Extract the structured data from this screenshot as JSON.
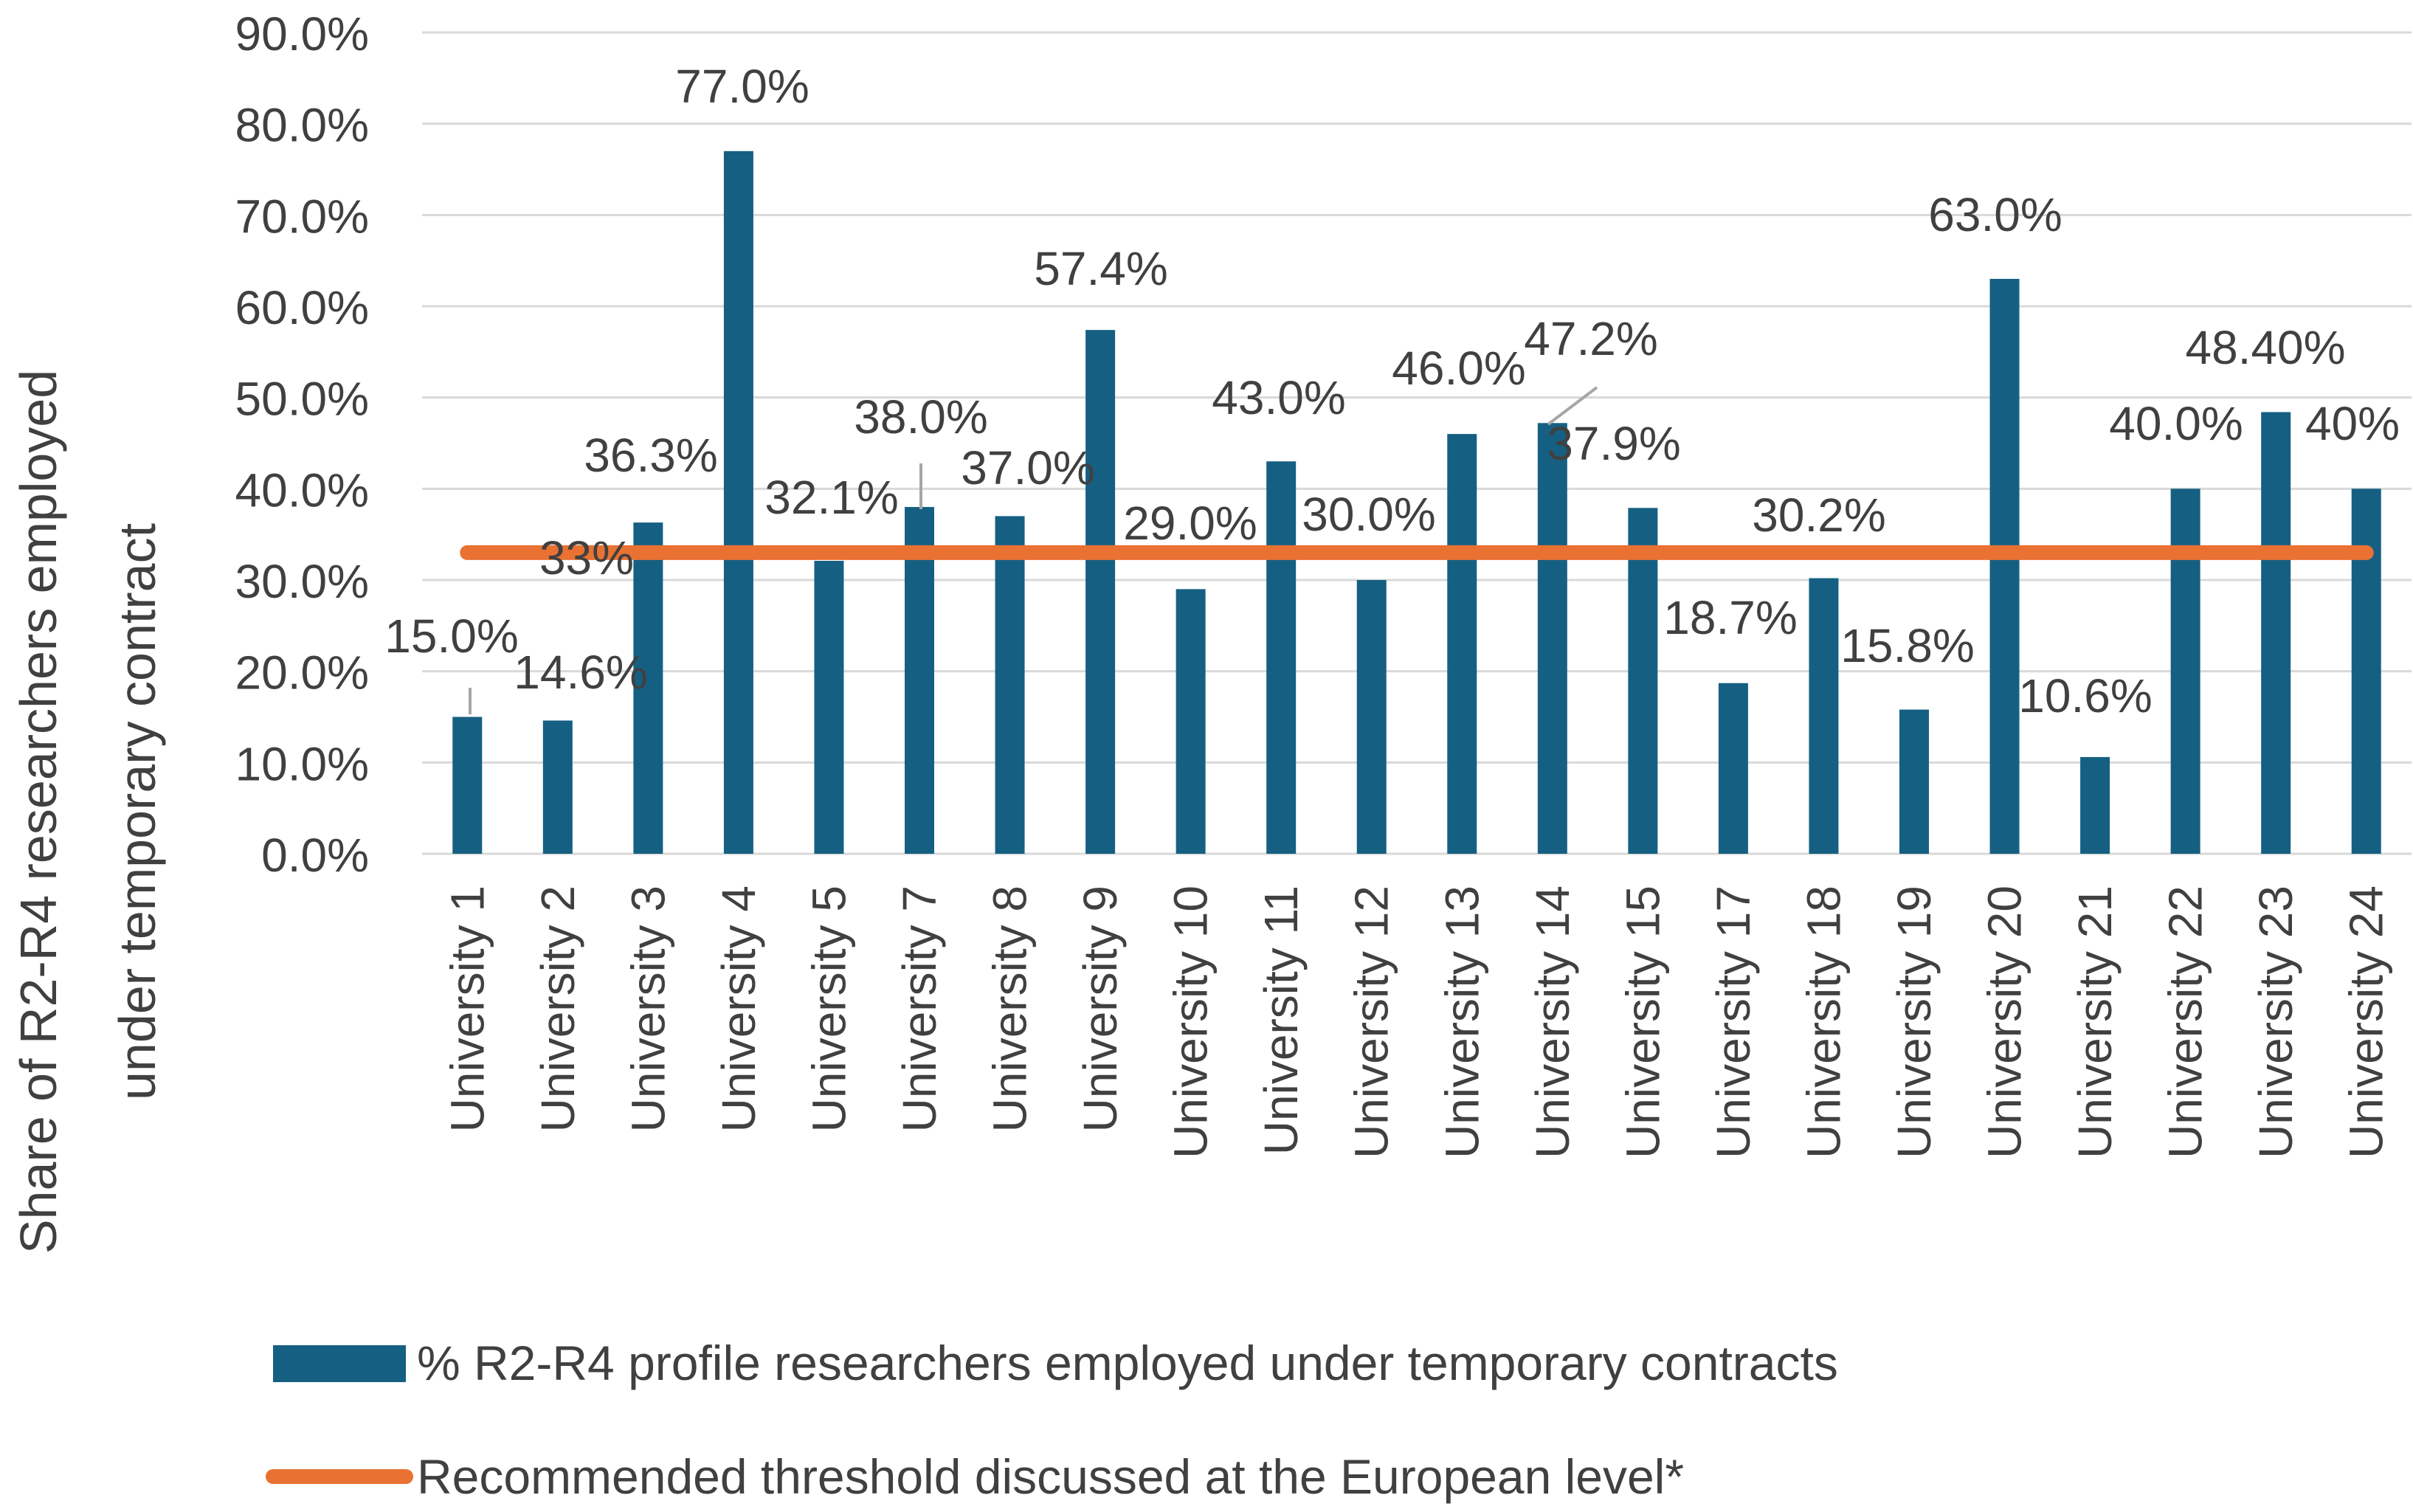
{
  "chart_data": {
    "type": "bar",
    "title": "",
    "xlabel": "",
    "ylabel": "Share of R2-R4 researchers employed under temporary contract",
    "ylim": [
      0,
      90
    ],
    "y_ticks": [
      "0.0%",
      "10.0%",
      "20.0%",
      "30.0%",
      "40.0%",
      "50.0%",
      "60.0%",
      "70.0%",
      "80.0%",
      "90.0%"
    ],
    "grid": true,
    "legend_position": "bottom",
    "categories": [
      "University 1",
      "University 2",
      "University 3",
      "University 4",
      "University 5",
      "University 7",
      "University 8",
      "University 9",
      "University 10",
      "University 11",
      "University 12",
      "University 13",
      "University 14",
      "University 15",
      "University 17",
      "University 18",
      "University 19",
      "University 20",
      "University 21",
      "University 22",
      "University 23",
      "University 24"
    ],
    "series": [
      {
        "name": "% R2-R4 profile researchers employed under temporary contracts",
        "type": "bar",
        "color": "#156082",
        "values": [
          15.0,
          14.6,
          36.3,
          77.0,
          32.1,
          38.0,
          37.0,
          57.4,
          29.0,
          43.0,
          30.0,
          46.0,
          47.2,
          37.9,
          18.7,
          30.2,
          15.8,
          63.0,
          10.6,
          40.0,
          48.4,
          40.0
        ],
        "labels": [
          "15.0%",
          "14.6%",
          "36.3%",
          "77.0%",
          "32.1%",
          "38.0%",
          "37.0%",
          "57.4%",
          "29.0%",
          "43.0%",
          "30.0%",
          "46.0%",
          "47.2%",
          "37.9%",
          "18.7%",
          "30.2%",
          "15.8%",
          "63.0%",
          "10.6%",
          "40.0%",
          "48.40%",
          "40%"
        ]
      },
      {
        "name": "Recommended threshold discussed at the European level*",
        "type": "line",
        "color": "#E97132",
        "value": 33,
        "label": "33%"
      }
    ]
  }
}
